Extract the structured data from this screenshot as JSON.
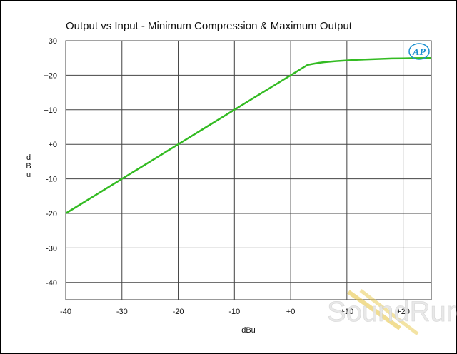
{
  "chart_data": {
    "type": "line",
    "title": "Output vs Input - Minimum Compression & Maximum Output",
    "xlabel": "dBu",
    "ylabel": "dBu",
    "xlim": [
      -40,
      25
    ],
    "ylim": [
      -45,
      30
    ],
    "grid": true,
    "x_ticks": [
      "-40",
      "-30",
      "-20",
      "-10",
      "+0",
      "+10",
      "+20"
    ],
    "x_tick_values": [
      -40,
      -30,
      -20,
      -10,
      0,
      10,
      20
    ],
    "y_ticks": [
      "+30",
      "+20",
      "+10",
      "+0",
      "-10",
      "-20",
      "-30",
      "-40"
    ],
    "y_tick_values": [
      30,
      20,
      10,
      0,
      -10,
      -20,
      -30,
      -40
    ],
    "series": [
      {
        "color": "#33bb22",
        "x": [
          -40,
          -35,
          -30,
          -25,
          -20,
          -15,
          -10,
          -5,
          0,
          1,
          2,
          3,
          4,
          5,
          6,
          8,
          10,
          12,
          15,
          18,
          20,
          22,
          25
        ],
        "y": [
          -20,
          -15,
          -10,
          -5,
          0,
          5,
          10,
          15,
          20,
          21,
          22,
          23,
          23.3,
          23.6,
          23.8,
          24.1,
          24.3,
          24.5,
          24.7,
          24.85,
          24.9,
          24.95,
          25
        ]
      }
    ]
  },
  "logo": {
    "text": "AP",
    "color": "#1a8fd0"
  },
  "watermark": {
    "text": "SoundRure"
  }
}
